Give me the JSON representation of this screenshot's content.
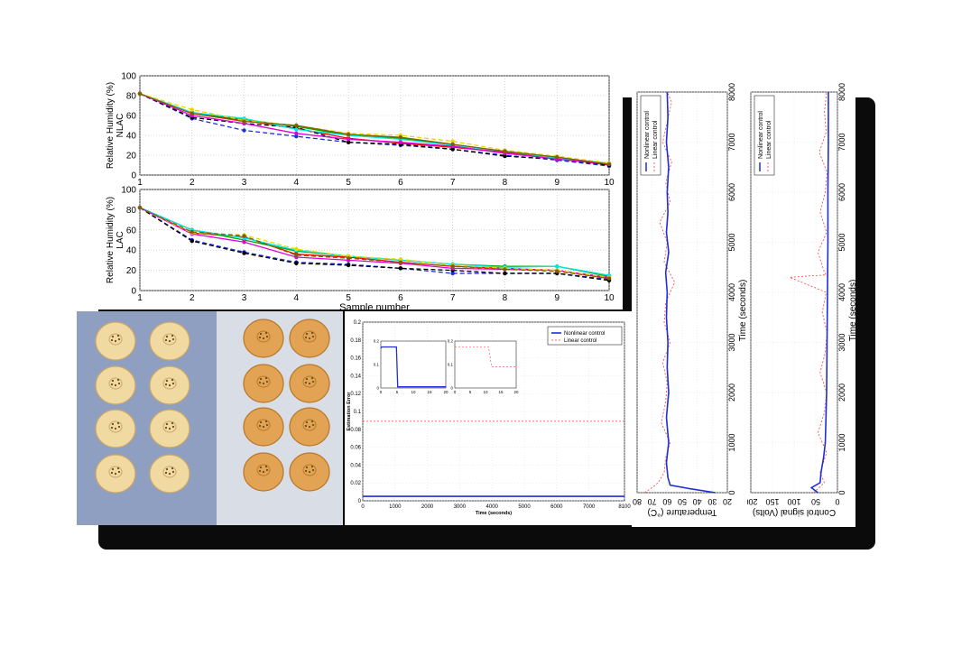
{
  "colors": {
    "backplate": "#0b0b0b",
    "nonlinear": "#1f2fd6",
    "linear": "#ff3b3b",
    "photo_left_bg": "#8f9fc2",
    "photo_right_bg": "#d9dde6",
    "slice_raw": "#f1d9a2",
    "slice_dried": "#e2a454"
  },
  "photos": {
    "left_alt": "",
    "right_alt": ""
  },
  "chart_data": [
    {
      "id": "nlac",
      "type": "line",
      "ylabel": [
        "Relative Humidity (%)",
        "NLAC"
      ],
      "xlabel": "",
      "x": [
        1,
        2,
        3,
        4,
        5,
        6,
        7,
        8,
        9,
        10
      ],
      "xticks": [
        "1",
        "2",
        "3",
        "4",
        "5",
        "6",
        "7",
        "8",
        "9",
        "10"
      ],
      "yticks": [
        "0",
        "20",
        "40",
        "60",
        "80",
        "100"
      ],
      "xlim": [
        1,
        10
      ],
      "ylim": [
        0,
        100
      ],
      "grid": true,
      "series": [
        {
          "color": "#ff0000",
          "dash": "",
          "values": [
            82,
            62,
            55,
            47,
            37,
            32,
            28,
            23,
            17,
            10
          ]
        },
        {
          "color": "#00aa00",
          "dash": "",
          "values": [
            82,
            63,
            56,
            49,
            40,
            37,
            30,
            24,
            17,
            11
          ]
        },
        {
          "color": "#1f2fd6",
          "dash": "5,3",
          "values": [
            82,
            57,
            45,
            39,
            33,
            30,
            26,
            20,
            15,
            9
          ]
        },
        {
          "color": "#000000",
          "dash": "5,3",
          "values": [
            82,
            58,
            52,
            48,
            33,
            31,
            26,
            19,
            16,
            10
          ]
        },
        {
          "color": "#00e5e5",
          "dash": "",
          "values": [
            82,
            63,
            57,
            46,
            40,
            36,
            30,
            24,
            17,
            12
          ]
        },
        {
          "color": "#e000e0",
          "dash": "",
          "values": [
            82,
            60,
            52,
            42,
            36,
            33,
            29,
            22,
            16,
            11
          ]
        },
        {
          "color": "#e6d800",
          "dash": "5,3",
          "values": [
            82,
            66,
            55,
            50,
            42,
            40,
            34,
            25,
            19,
            12
          ]
        },
        {
          "color": "#7f5f00",
          "dash": "",
          "values": [
            82,
            62,
            54,
            50,
            41,
            38,
            31,
            24,
            18,
            11
          ]
        }
      ]
    },
    {
      "id": "lac",
      "type": "line",
      "ylabel": [
        "Relative Humidity (%)",
        "LAC"
      ],
      "xlabel": "Sample number",
      "x": [
        1,
        2,
        3,
        4,
        5,
        6,
        7,
        8,
        9,
        10
      ],
      "xticks": [
        "1",
        "2",
        "3",
        "4",
        "5",
        "6",
        "7",
        "8",
        "9",
        "10"
      ],
      "yticks": [
        "0",
        "20",
        "40",
        "60",
        "80",
        "100"
      ],
      "xlim": [
        1,
        10
      ],
      "ylim": [
        0,
        100
      ],
      "grid": true,
      "series": [
        {
          "color": "#ff0000",
          "dash": "",
          "values": [
            82,
            57,
            53,
            36,
            33,
            28,
            24,
            22,
            20,
            12
          ]
        },
        {
          "color": "#00aa00",
          "dash": "",
          "values": [
            82,
            60,
            50,
            39,
            34,
            30,
            26,
            24,
            24,
            14
          ]
        },
        {
          "color": "#1f2fd6",
          "dash": "5,3",
          "values": [
            82,
            50,
            38,
            28,
            26,
            22,
            17,
            17,
            17,
            11
          ]
        },
        {
          "color": "#000000",
          "dash": "5,3",
          "values": [
            82,
            49,
            37,
            27,
            25,
            22,
            20,
            17,
            17,
            10
          ]
        },
        {
          "color": "#00e5e5",
          "dash": "",
          "values": [
            82,
            60,
            52,
            40,
            34,
            30,
            26,
            23,
            24,
            15
          ]
        },
        {
          "color": "#e000e0",
          "dash": "",
          "values": [
            82,
            56,
            48,
            33,
            30,
            27,
            22,
            21,
            20,
            13
          ]
        },
        {
          "color": "#e6d800",
          "dash": "5,3",
          "values": [
            82,
            57,
            55,
            41,
            34,
            31,
            25,
            22,
            20,
            13
          ]
        },
        {
          "color": "#7f5f00",
          "dash": "5,3",
          "values": [
            82,
            58,
            54,
            35,
            32,
            28,
            24,
            21,
            19,
            12
          ]
        }
      ]
    },
    {
      "id": "estimation",
      "type": "line",
      "ylabel": "Estimation Error",
      "xlabel": "Time (seconds)",
      "xticks": [
        "0",
        "1000",
        "2000",
        "3000",
        "4000",
        "5000",
        "6000",
        "7000",
        "8100"
      ],
      "xtick_values": [
        0,
        1000,
        2000,
        3000,
        4000,
        5000,
        6000,
        7000,
        8100
      ],
      "yticks": [
        "0",
        "0.02",
        "0.04",
        "0.06",
        "0.08",
        "0.1",
        "0.12",
        "0.14",
        "0.16",
        "0.18",
        "0.2"
      ],
      "xlim": [
        0,
        8100
      ],
      "ylim": [
        0,
        0.2
      ],
      "legend": [
        "Nonlinear control",
        "Linear control"
      ],
      "legend_position": "top-right",
      "series": [
        {
          "name": "Nonlinear control",
          "color": "#1f2fd6",
          "dash": "",
          "x": [
            0,
            8100
          ],
          "values": [
            0.005,
            0.005
          ]
        },
        {
          "name": "Linear control",
          "color": "#ff3b3b",
          "dash": "2,2",
          "x": [
            0,
            8100
          ],
          "values": [
            0.089,
            0.089
          ]
        }
      ],
      "insets": [
        {
          "xticks": [
            "0",
            "5",
            "10",
            "15",
            "20"
          ],
          "yticks": [
            "0",
            "0.1",
            "0.2"
          ],
          "xlim": [
            0,
            20
          ],
          "ylim": [
            0,
            0.2
          ],
          "series": [
            {
              "color": "#1f2fd6",
              "dash": "",
              "x": [
                0,
                0.3,
                4.8,
                5.2,
                20
              ],
              "values": [
                0.17,
                0.175,
                0.175,
                0.005,
                0.005
              ]
            }
          ]
        },
        {
          "xticks": [
            "0",
            "5",
            "10",
            "15",
            "20"
          ],
          "yticks": [
            "0",
            "0.1",
            "0.2"
          ],
          "xlim": [
            0,
            20
          ],
          "ylim": [
            0,
            0.2
          ],
          "series": [
            {
              "color": "#ff3b3b",
              "dash": "2,2",
              "x": [
                0,
                11,
                12,
                20
              ],
              "values": [
                0.175,
                0.175,
                0.09,
                0.09
              ]
            }
          ]
        }
      ]
    },
    {
      "id": "temperature",
      "type": "line",
      "rotated": true,
      "xlabel": "Temperature (°C)",
      "ylabel": "Time (seconds)",
      "temp_ticks": [
        "80",
        "70",
        "60",
        "50",
        "40",
        "30",
        "20"
      ],
      "temp_range": [
        80,
        20
      ],
      "time_ticks": [
        "0",
        "1000",
        "2000",
        "3000",
        "4000",
        "5000",
        "6000",
        "7000",
        "8000"
      ],
      "time_range": [
        0,
        8000
      ],
      "legend": [
        "Nonlinear control",
        "Linear control"
      ],
      "series": [
        {
          "name": "Nonlinear control",
          "color": "#1f2fd6",
          "dash": "",
          "time": [
            0,
            80,
            150,
            300,
            600,
            1000,
            1500,
            2000,
            2500,
            3000,
            3500,
            4000,
            4400,
            4800,
            5200,
            5600,
            6000,
            6500,
            7000,
            7500,
            8000
          ],
          "values": [
            28,
            45,
            58,
            59.5,
            60.5,
            59,
            60.5,
            59,
            60,
            59.5,
            60.5,
            60,
            61,
            59,
            60.5,
            59.5,
            60,
            59,
            60.5,
            59.5,
            60
          ]
        },
        {
          "name": "Linear control",
          "color": "#ff3b3b",
          "dash": "2,2",
          "time": [
            0,
            100,
            200,
            400,
            700,
            1000,
            1400,
            1800,
            2200,
            2600,
            3000,
            3400,
            3800,
            4200,
            4600,
            5000,
            5400,
            5800,
            6200,
            6600,
            7000,
            7400,
            7800,
            8000
          ],
          "values": [
            75,
            70,
            66,
            62,
            61,
            58,
            64,
            61,
            60,
            63,
            58,
            62,
            61,
            55,
            62,
            60,
            65,
            58,
            61,
            57,
            63,
            60,
            57,
            60
          ]
        }
      ]
    },
    {
      "id": "control",
      "type": "line",
      "rotated": true,
      "xlabel": "Control signal (Volts)",
      "ylabel": "Time (seconds)",
      "u_ticks": [
        "200",
        "150",
        "100",
        "50",
        "0"
      ],
      "u_range": [
        200,
        0
      ],
      "time_ticks": [
        "0",
        "1000",
        "2000",
        "3000",
        "4000",
        "5000",
        "6000",
        "7000",
        "8000"
      ],
      "time_range": [
        0,
        8000
      ],
      "legend": [
        "Nonlinear control",
        "Linear control"
      ],
      "series": [
        {
          "name": "Nonlinear control",
          "color": "#1f2fd6",
          "dash": "",
          "time": [
            0,
            100,
            200,
            400,
            700,
            1000,
            2000,
            3000,
            4000,
            5000,
            6000,
            7000,
            8000
          ],
          "values": [
            45,
            60,
            40,
            38,
            32,
            28,
            25,
            24,
            23,
            22,
            22,
            21,
            21
          ]
        },
        {
          "name": "Linear control",
          "color": "#ff3b3b",
          "dash": "2,2",
          "time": [
            0,
            200,
            400,
            800,
            1200,
            1600,
            2000,
            2400,
            2800,
            3200,
            3600,
            4000,
            4300,
            4350,
            4400,
            4800,
            5200,
            5600,
            6000,
            6400,
            6800,
            7200,
            7600,
            8000
          ],
          "values": [
            55,
            30,
            40,
            25,
            45,
            30,
            25,
            40,
            28,
            24,
            35,
            26,
            110,
            26,
            30,
            45,
            25,
            40,
            28,
            24,
            42,
            26,
            30,
            25
          ]
        }
      ]
    }
  ]
}
